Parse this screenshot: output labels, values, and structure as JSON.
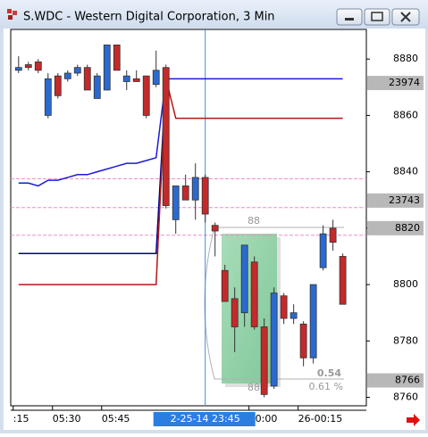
{
  "window": {
    "title": "S.WDC - Western Digital Corporation, 3 Min"
  },
  "chart_data": {
    "type": "candlestick",
    "categories": [
      ":15",
      null,
      null,
      null,
      "05:30",
      null,
      null,
      null,
      null,
      "05:45",
      null,
      null,
      null,
      null,
      null,
      null,
      null,
      null,
      null,
      null,
      null,
      null,
      null,
      null,
      "00:00",
      null,
      null,
      null,
      null,
      "26-00:15",
      null,
      null,
      null,
      null
    ],
    "open": [
      8876,
      8878,
      8879,
      8860,
      8874,
      8873,
      8875,
      8877,
      8866,
      8869,
      8885,
      8872,
      8873,
      8874,
      8871,
      8877,
      8823,
      8835,
      8830,
      8838,
      8821,
      8805,
      8795,
      8790,
      8808,
      8785,
      8764,
      8796,
      8788,
      8786,
      8774,
      8806,
      8820,
      8810
    ],
    "high": [
      8881,
      8879,
      8880,
      8875,
      8875,
      8876,
      8878,
      8878,
      8875,
      8885,
      8885,
      8876,
      8876,
      8874,
      8883,
      8878,
      8835,
      8839,
      8843,
      8839,
      8822,
      8807,
      8799,
      8814,
      8810,
      8788,
      8799,
      8797,
      8793,
      8787,
      8800,
      8821,
      8823,
      8811
    ],
    "low": [
      8875,
      8876,
      8875,
      8859,
      8866,
      8872,
      8874,
      8869,
      8866,
      8869,
      8876,
      8869,
      8872,
      8859,
      8870,
      8827,
      8818,
      8830,
      8823,
      8822,
      8810,
      8794,
      8776,
      8785,
      8784,
      8760,
      8763,
      8786,
      8786,
      8771,
      8772,
      8805,
      8812,
      8793
    ],
    "close": [
      8877,
      8877,
      8876,
      8873,
      8867,
      8875,
      8877,
      8869,
      8874,
      8885,
      8876,
      8874,
      8872,
      8860,
      8876,
      8828,
      8835,
      8830,
      8838,
      8825,
      8819,
      8794,
      8785,
      8814,
      8785,
      8761,
      8797,
      8788,
      8790,
      8774,
      8800,
      8818,
      8815,
      8793
    ],
    "up_color": "#2a6ad0",
    "down_color": "#c42a2a",
    "xlim": [
      -0.8,
      35.4
    ],
    "ylim": [
      8757,
      8890.5
    ],
    "yticks": [
      8760,
      8780,
      8800,
      8820,
      8840,
      8860,
      8880
    ],
    "indicators": [
      {
        "color": "#1a1ad8",
        "values": [
          8836,
          8836,
          8835,
          8837,
          8837,
          8838,
          8839,
          8839,
          8840,
          8841,
          8842,
          8843,
          8843,
          8844,
          8845,
          8873,
          8873,
          8873,
          8873,
          8873,
          8873,
          8873,
          8873,
          8873,
          8873,
          8873,
          8873,
          8873,
          8873,
          8873,
          8873,
          8873,
          8873,
          8873
        ]
      },
      {
        "color": "#000090",
        "values": [
          8811,
          8811,
          8811,
          8811,
          8811,
          8811,
          8811,
          8811,
          8811,
          8811,
          8811,
          8811,
          8811,
          8811,
          8811,
          8873,
          null,
          null,
          null,
          null,
          null,
          null,
          null,
          null,
          null,
          null,
          null,
          null,
          null,
          null,
          null,
          null,
          null,
          null
        ]
      },
      {
        "color": "#b01818",
        "values": [
          8800,
          8800,
          8800,
          8800,
          8800,
          8800,
          8800,
          8800,
          8800,
          8800,
          8800,
          8800,
          8800,
          8800,
          8800,
          8873,
          8859,
          8859,
          8859,
          8859,
          8859,
          8859,
          8859,
          8859,
          8859,
          8859,
          8859,
          8859,
          8859,
          8859,
          8859,
          8859,
          8859,
          8859
        ]
      }
    ],
    "levels": [
      8837.5,
      8827.3,
      8817.5
    ],
    "level_color": "#f08cc8",
    "markers": [
      {
        "value": 8871.5,
        "label": "23974"
      },
      {
        "value": 8829.8,
        "label": "23743"
      },
      8820,
      8766
    ],
    "crosshair": {
      "x": 19,
      "label": "2-25-14 23:45"
    },
    "measure": {
      "top_label": "88",
      "bottom_label": "88",
      "change": "0.54",
      "percent": "0.61 %"
    }
  }
}
